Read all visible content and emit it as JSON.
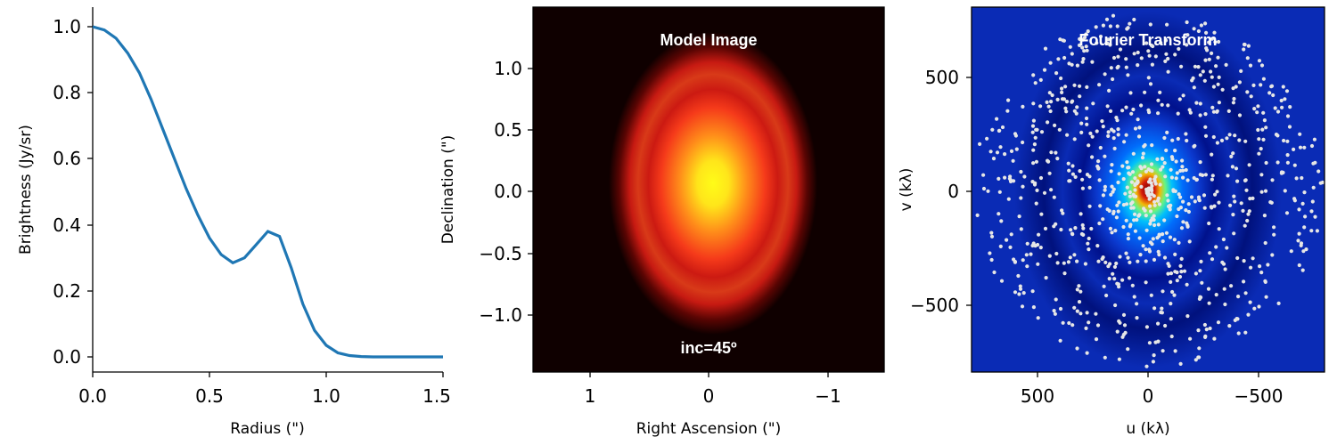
{
  "chart_data": [
    {
      "type": "line",
      "xlabel": "Radius (\")",
      "ylabel": "Brightness (Jy/sr)",
      "xlim": [
        0.0,
        1.5
      ],
      "ylim": [
        -0.05,
        1.05
      ],
      "xticks": [
        "0.0",
        "0.5",
        "1.0",
        "1.5"
      ],
      "yticks": [
        "0.0",
        "0.2",
        "0.4",
        "0.6",
        "0.8",
        "1.0"
      ],
      "series": [
        {
          "color": "#1f77b4",
          "x": [
            0.0,
            0.05,
            0.1,
            0.15,
            0.2,
            0.25,
            0.3,
            0.35,
            0.4,
            0.45,
            0.5,
            0.55,
            0.6,
            0.65,
            0.7,
            0.75,
            0.8,
            0.85,
            0.9,
            0.95,
            1.0,
            1.05,
            1.1,
            1.15,
            1.2,
            1.3,
            1.4,
            1.5
          ],
          "y": [
            1.0,
            0.99,
            0.965,
            0.92,
            0.86,
            0.78,
            0.69,
            0.6,
            0.51,
            0.43,
            0.36,
            0.31,
            0.285,
            0.3,
            0.34,
            0.38,
            0.365,
            0.27,
            0.16,
            0.08,
            0.035,
            0.012,
            0.004,
            0.001,
            0.0,
            0.0,
            0.0,
            0.0
          ]
        }
      ]
    },
    {
      "type": "heatmap",
      "title": "Model Image",
      "annotation": "inc=45º",
      "xlabel": "Right Ascension (\")",
      "ylabel": "Declination (\")",
      "xlim": [
        1.5,
        -1.5
      ],
      "ylim": [
        -1.45,
        1.45
      ],
      "xticks": [
        "1",
        "0",
        "−1"
      ],
      "yticks": [
        "−1.0",
        "−0.5",
        "0.0",
        "0.5",
        "1.0"
      ],
      "colormap": "hot",
      "background": "#0f0000"
    },
    {
      "type": "scatter",
      "title": "Fourier Transform",
      "xlabel": "u (kλ)",
      "ylabel": "v (kλ)",
      "xlim": [
        800,
        -800
      ],
      "ylim": [
        -800,
        800
      ],
      "xticks": [
        "500",
        "0",
        "−500"
      ],
      "yticks": [
        "−500",
        "0",
        "500"
      ],
      "colormap": "jet",
      "point_color": "#e6e6e6",
      "background": "#0a2bb5"
    }
  ]
}
